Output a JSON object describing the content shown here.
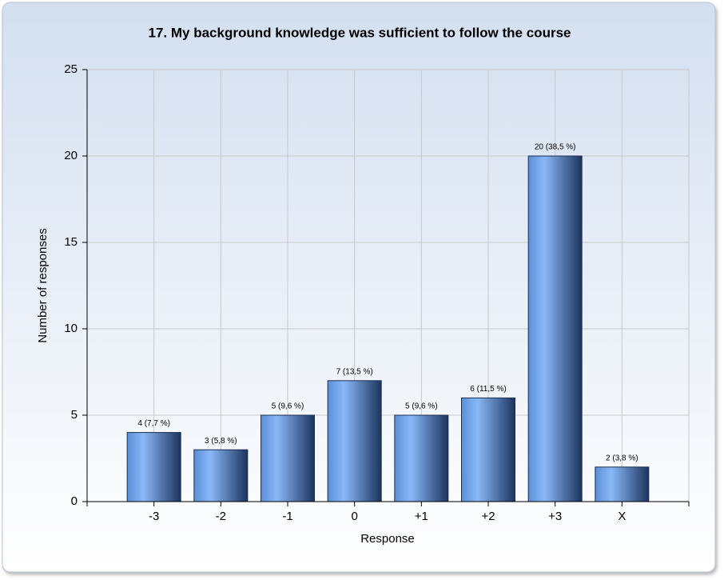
{
  "chart_data": {
    "type": "bar",
    "title": "17. My background knowledge was sufficient to follow the course",
    "x_label": "Response",
    "y_label": "Number of responses",
    "categories": [
      "-3",
      "-2",
      "-1",
      "0",
      "+1",
      "+2",
      "+3",
      "X"
    ],
    "values": [
      4,
      3,
      5,
      7,
      5,
      6,
      20,
      2
    ],
    "value_labels": [
      "4 (7,7 %)",
      "3 (5,8 %)",
      "5 (9,6 %)",
      "7 (13,5 %)",
      "5 (9,6 %)",
      "6 (11,5 %)",
      "20 (38,5 %)",
      "2 (3,8 %)"
    ],
    "color": "#5b8fd6",
    "ylim": [
      0,
      25
    ],
    "yticks": [
      0,
      5,
      10,
      15,
      20,
      25
    ],
    "grid": true
  }
}
